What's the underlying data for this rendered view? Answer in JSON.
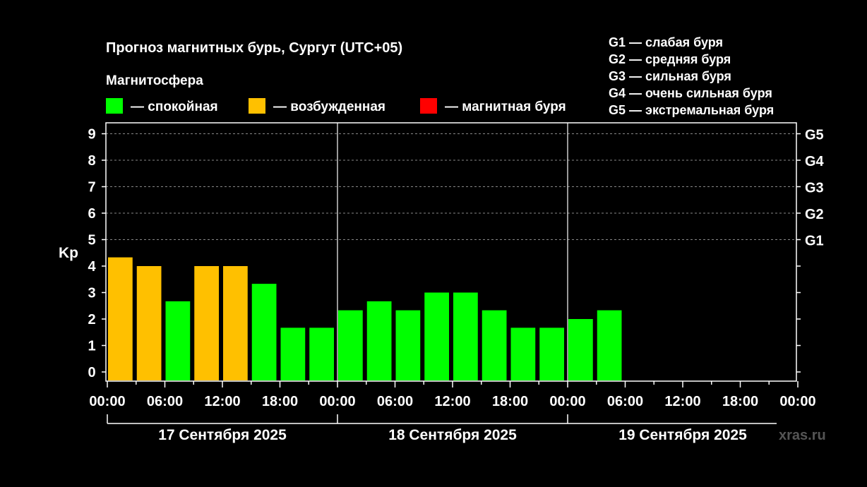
{
  "chart_data": {
    "type": "bar",
    "title": "Прогноз магнитных бурь, Сургут (UTC+05)",
    "legend_title": "Магнитосфера",
    "legend": [
      {
        "key": "calm",
        "label": "— спокойная",
        "color": "#00ff00"
      },
      {
        "key": "excited",
        "label": "— возбужденная",
        "color": "#ffc000"
      },
      {
        "key": "storm",
        "label": "— магнитная буря",
        "color": "#ff0000"
      }
    ],
    "g_scale_legend": [
      "G1 — слабая буря",
      "G2 — средняя буря",
      "G3 — сильная буря",
      "G4 — очень сильная буря",
      "G5 — экстремальная буря"
    ],
    "ylabel": "Kp",
    "ylim": [
      0,
      9
    ],
    "y_ticks": [
      "0",
      "1",
      "2",
      "3",
      "4",
      "5",
      "6",
      "7",
      "8",
      "9"
    ],
    "right_ticks": [
      {
        "value": 5,
        "label": "G1"
      },
      {
        "value": 6,
        "label": "G2"
      },
      {
        "value": 7,
        "label": "G3"
      },
      {
        "value": 8,
        "label": "G4"
      },
      {
        "value": 9,
        "label": "G5"
      }
    ],
    "x_tick_labels": [
      "00:00",
      "06:00",
      "12:00",
      "18:00",
      "00:00",
      "06:00",
      "12:00",
      "18:00",
      "00:00",
      "06:00",
      "12:00",
      "18:00",
      "00:00"
    ],
    "days": [
      "17 Сентября 2025",
      "18 Сентября 2025",
      "19 Сентября 2025"
    ],
    "interval_hours": 3,
    "values": [
      4.33,
      4.0,
      2.67,
      4.0,
      4.0,
      3.33,
      1.67,
      1.67,
      2.33,
      2.67,
      2.33,
      3.0,
      3.0,
      2.33,
      1.67,
      1.67,
      2.0,
      2.33
    ],
    "levels": [
      "excited",
      "excited",
      "calm",
      "excited",
      "excited",
      "calm",
      "calm",
      "calm",
      "calm",
      "calm",
      "calm",
      "calm",
      "calm",
      "calm",
      "calm",
      "calm",
      "calm",
      "calm"
    ],
    "grid": true
  },
  "watermark": "xras.ru"
}
